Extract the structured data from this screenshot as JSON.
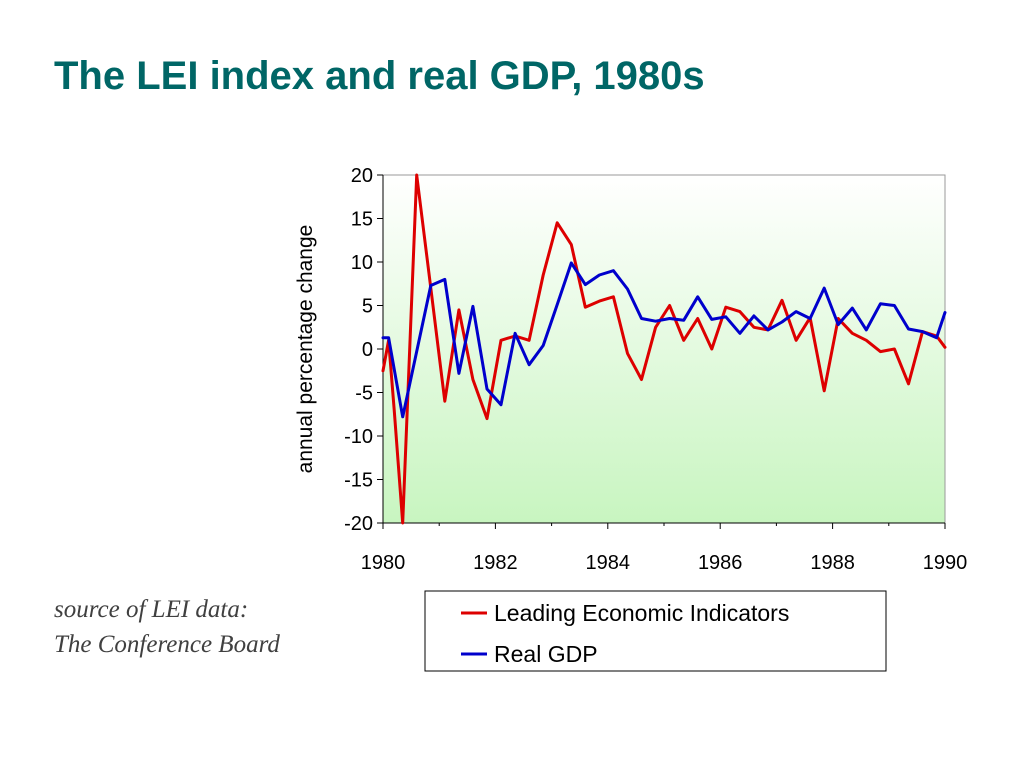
{
  "slide": {
    "title": "The LEI index and real GDP, 1980s",
    "title_color": "#006666",
    "source_line1": "source of LEI data:",
    "source_line2": "The Conference Board"
  },
  "chart_data": {
    "type": "line",
    "title": "",
    "xlabel": "",
    "ylabel": "annual percentage change",
    "xlim": [
      1980,
      1990
    ],
    "ylim": [
      -20,
      20
    ],
    "x_ticks": [
      1980,
      1982,
      1984,
      1986,
      1988,
      1990
    ],
    "y_ticks": [
      20,
      15,
      10,
      5,
      0,
      -5,
      -10,
      -15,
      -20
    ],
    "grid": false,
    "plot_background": "gradient white-to-light-green",
    "legend_position": "bottom",
    "series": [
      {
        "name": "Leading Economic Indicators",
        "color": "#dd0000",
        "x": [
          1980.0,
          1980.1,
          1980.2,
          1980.35,
          1980.6,
          1980.85,
          1981.1,
          1981.35,
          1981.6,
          1981.85,
          1982.1,
          1982.35,
          1982.6,
          1982.85,
          1983.1,
          1983.35,
          1983.6,
          1983.85,
          1984.1,
          1984.35,
          1984.6,
          1984.85,
          1985.1,
          1985.35,
          1985.6,
          1985.85,
          1986.1,
          1986.35,
          1986.6,
          1986.85,
          1987.1,
          1987.35,
          1987.6,
          1987.85,
          1988.1,
          1988.35,
          1988.6,
          1988.85,
          1989.1,
          1989.35,
          1989.6,
          1989.85,
          1990.0
        ],
        "values": [
          -2.5,
          1.0,
          -7.0,
          -20.0,
          20.0,
          7.0,
          -6.0,
          4.5,
          -3.5,
          -8.0,
          1.0,
          1.5,
          1.0,
          8.5,
          14.5,
          12.0,
          4.8,
          5.5,
          6.0,
          -0.5,
          -3.5,
          2.5,
          5.0,
          1.0,
          3.5,
          0.0,
          4.8,
          4.3,
          2.5,
          2.2,
          5.6,
          1.0,
          3.6,
          -4.8,
          3.5,
          1.8,
          1.0,
          -0.3,
          0.0,
          -4.0,
          2.0,
          1.5,
          0.2
        ]
      },
      {
        "name": "Real GDP",
        "color": "#0000cc",
        "x": [
          1980.0,
          1980.1,
          1980.35,
          1980.85,
          1981.1,
          1981.35,
          1981.6,
          1981.85,
          1982.1,
          1982.35,
          1982.6,
          1982.85,
          1983.1,
          1983.35,
          1983.6,
          1983.85,
          1984.1,
          1984.35,
          1984.6,
          1984.85,
          1985.1,
          1985.35,
          1985.6,
          1985.85,
          1986.1,
          1986.35,
          1986.6,
          1986.85,
          1987.1,
          1987.35,
          1987.6,
          1987.85,
          1988.1,
          1988.35,
          1988.6,
          1988.85,
          1989.1,
          1989.35,
          1989.6,
          1989.85,
          1990.0
        ],
        "values": [
          1.3,
          1.3,
          -7.8,
          7.3,
          8.0,
          -2.8,
          4.9,
          -4.6,
          -6.4,
          1.8,
          -1.8,
          0.4,
          5.1,
          9.9,
          7.4,
          8.5,
          9.0,
          6.9,
          3.5,
          3.2,
          3.5,
          3.3,
          6.0,
          3.4,
          3.7,
          1.8,
          3.8,
          2.2,
          3.1,
          4.3,
          3.5,
          7.0,
          2.8,
          4.7,
          2.2,
          5.2,
          5.0,
          2.3,
          2.0,
          1.3,
          4.2
        ]
      }
    ]
  }
}
